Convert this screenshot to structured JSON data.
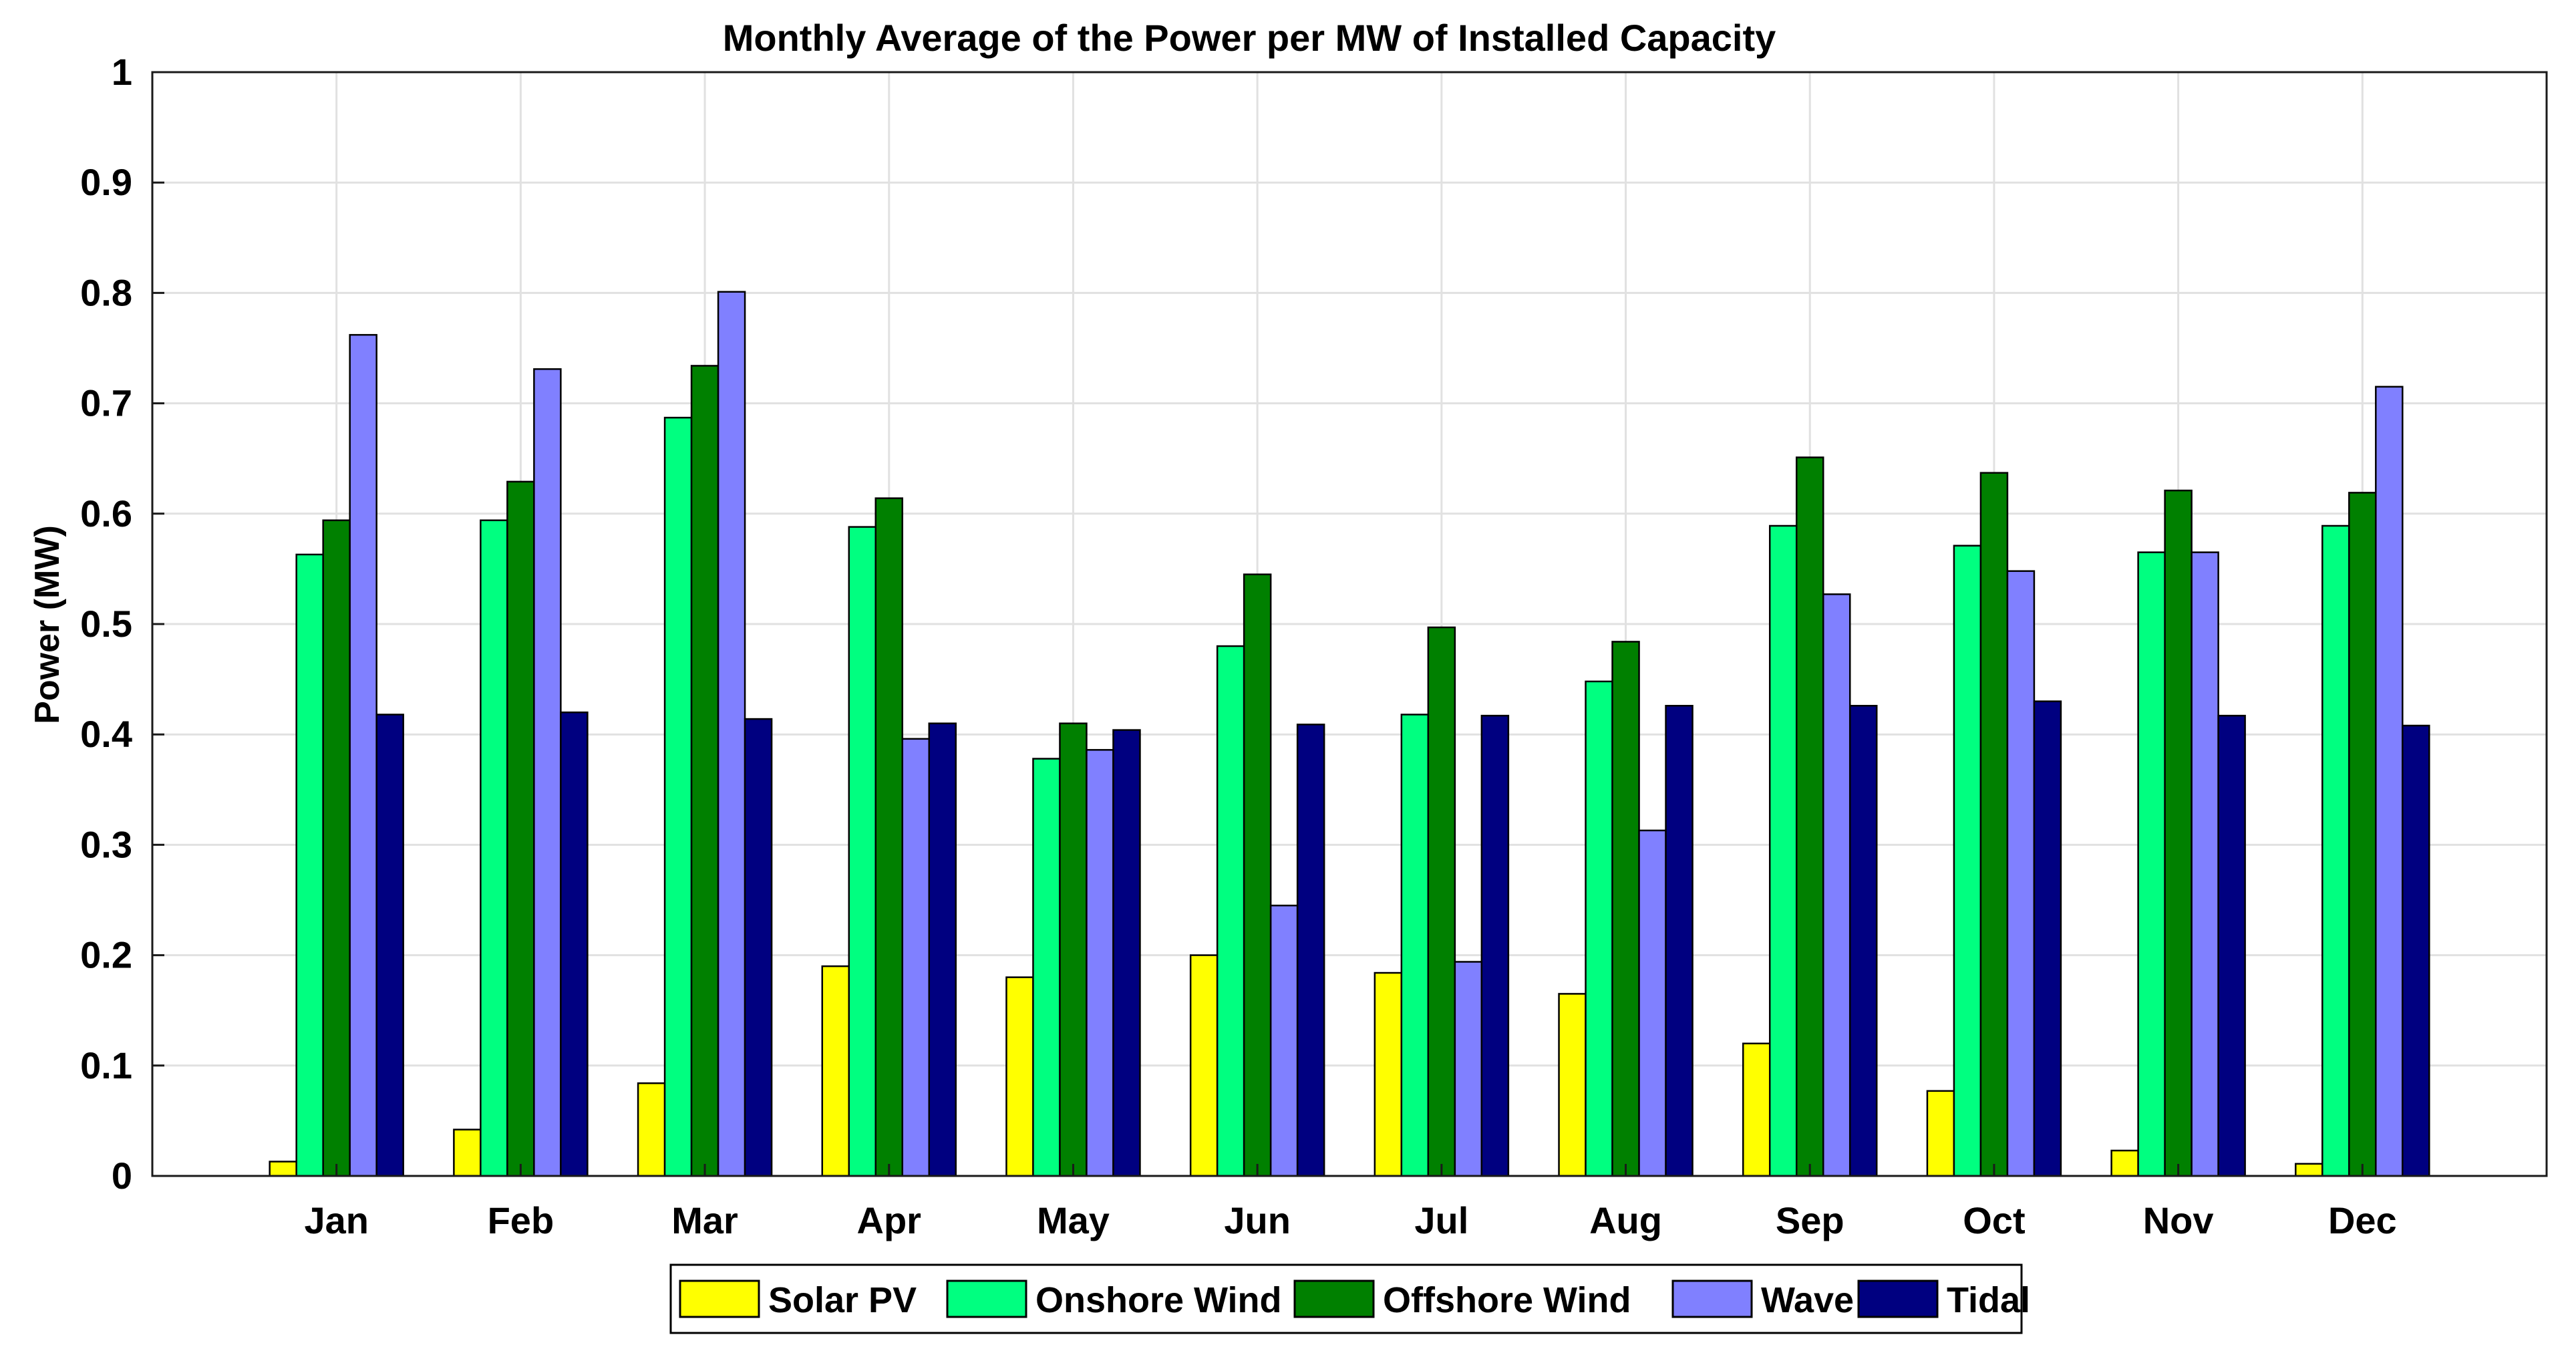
{
  "chart_data": {
    "type": "bar",
    "title": "Monthly Average of the Power per MW of Installed Capacity",
    "xlabel": "",
    "ylabel": "Power (MW)",
    "ylim": [
      0,
      1
    ],
    "yticks": [
      "0",
      "0.1",
      "0.2",
      "0.3",
      "0.4",
      "0.5",
      "0.6",
      "0.7",
      "0.8",
      "0.9",
      "1"
    ],
    "grid": true,
    "legend_position": "bottom-center",
    "categories": [
      "Jan",
      "Feb",
      "Mar",
      "Apr",
      "May",
      "Jun",
      "Jul",
      "Aug",
      "Sep",
      "Oct",
      "Nov",
      "Dec"
    ],
    "series": [
      {
        "name": "Solar PV",
        "color": "#ffff00",
        "values": [
          0.013,
          0.042,
          0.084,
          0.19,
          0.18,
          0.2,
          0.184,
          0.165,
          0.12,
          0.077,
          0.023,
          0.011
        ]
      },
      {
        "name": "Onshore Wind",
        "color": "#00ff80",
        "values": [
          0.563,
          0.594,
          0.687,
          0.588,
          0.378,
          0.48,
          0.418,
          0.448,
          0.589,
          0.571,
          0.565,
          0.589
        ]
      },
      {
        "name": "Offshore Wind",
        "color": "#008000",
        "values": [
          0.594,
          0.629,
          0.734,
          0.614,
          0.41,
          0.545,
          0.497,
          0.484,
          0.651,
          0.637,
          0.621,
          0.619
        ]
      },
      {
        "name": "Wave",
        "color": "#8080ff",
        "values": [
          0.762,
          0.731,
          0.801,
          0.396,
          0.386,
          0.245,
          0.194,
          0.313,
          0.527,
          0.548,
          0.565,
          0.715
        ]
      },
      {
        "name": "Tidal",
        "color": "#000080",
        "values": [
          0.418,
          0.42,
          0.414,
          0.41,
          0.404,
          0.409,
          0.417,
          0.426,
          0.426,
          0.43,
          0.417,
          0.408
        ]
      }
    ]
  }
}
